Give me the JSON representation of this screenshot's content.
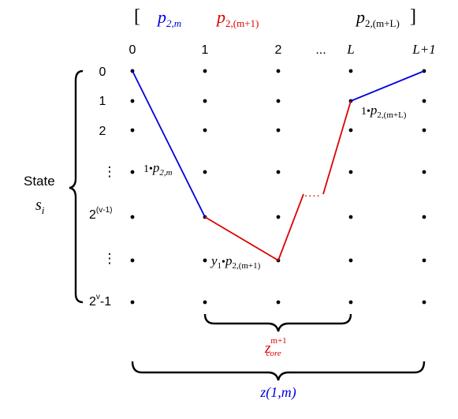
{
  "header": {
    "open_bracket": "[",
    "p2m_base": "p",
    "p2m_sub": "2,m",
    "p2m1_base": "p",
    "p2m1_sub": "2,(m+1)",
    "p2mL_base": "p",
    "p2mL_sub": "2,(m+L)",
    "close_bracket": "]",
    "colors": {
      "blue": "#0000dd",
      "red": "#dd0000"
    }
  },
  "columns": [
    "0",
    "1",
    "2",
    "...",
    "L",
    "L+1"
  ],
  "rows": [
    "0",
    "1",
    "2",
    "⋮",
    "2",
    "⋮",
    "2"
  ],
  "row_superscripts": {
    "4": "(v-1)",
    "6": "v"
  },
  "row_suffix_6": "-1",
  "state_label": {
    "word": "State",
    "symbol": "s",
    "sub": "i"
  },
  "edge_labels": {
    "e1_coef": "1",
    "e1_base": "p",
    "e1_sub": "2,m",
    "e2_coef": "y",
    "e2_coef_sub": "1",
    "e2_base": "p",
    "e2_sub": "2,(m+1)",
    "e3_coef": "1",
    "e3_base": "p",
    "e3_sub": "2,(m+L)",
    "dot": "•"
  },
  "dotted_gap": "....",
  "braces": {
    "core_base": "z",
    "core_sup": "m+1",
    "core_sub": "core",
    "total_text": "z(1,m)"
  }
}
